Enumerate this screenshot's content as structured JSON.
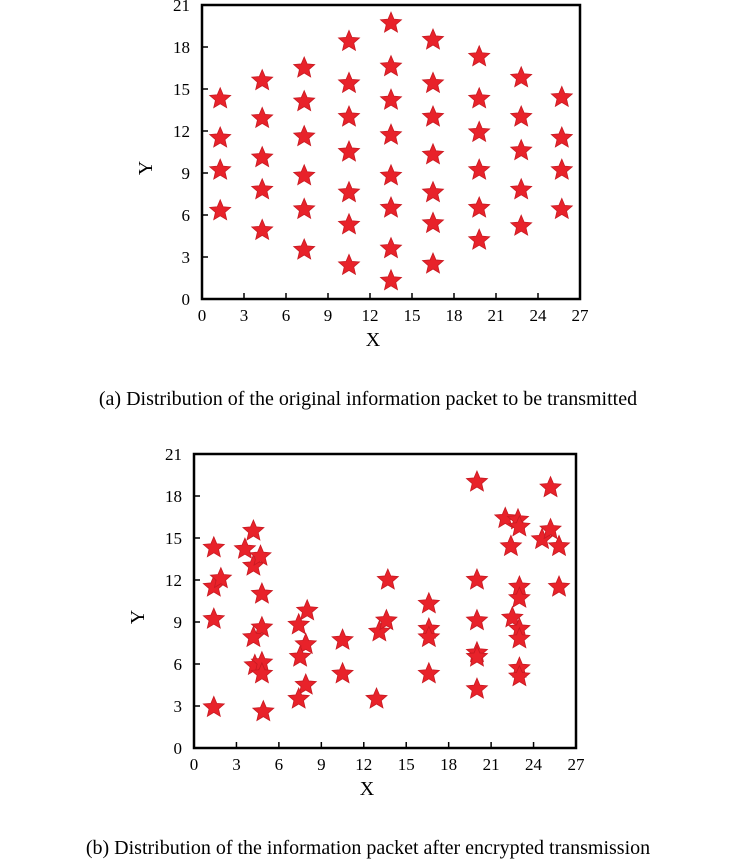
{
  "chart_data": [
    {
      "type": "scatter",
      "xlabel": "X",
      "ylabel": "Y",
      "xlim": [
        0,
        27
      ],
      "ylim": [
        0,
        21
      ],
      "xticks": [
        "0",
        "3",
        "6",
        "9",
        "12",
        "15",
        "18",
        "21",
        "24",
        "27"
      ],
      "yticks": [
        "0",
        "3",
        "6",
        "9",
        "12",
        "15",
        "18",
        "21"
      ],
      "marker": "star",
      "marker_color": "#e8222a",
      "caption": "(a) Distribution of the original information packet to be transmitted",
      "points": [
        [
          1.3,
          14.3
        ],
        [
          1.3,
          11.5
        ],
        [
          1.3,
          9.2
        ],
        [
          1.3,
          6.3
        ],
        [
          4.3,
          15.6
        ],
        [
          4.3,
          12.9
        ],
        [
          4.3,
          10.1
        ],
        [
          4.3,
          7.8
        ],
        [
          4.3,
          4.9
        ],
        [
          7.3,
          16.5
        ],
        [
          7.3,
          14.1
        ],
        [
          7.3,
          11.6
        ],
        [
          7.3,
          8.8
        ],
        [
          7.3,
          6.4
        ],
        [
          7.3,
          3.5
        ],
        [
          10.5,
          18.4
        ],
        [
          10.5,
          15.4
        ],
        [
          10.5,
          13.0
        ],
        [
          10.5,
          10.5
        ],
        [
          10.5,
          7.6
        ],
        [
          10.5,
          5.3
        ],
        [
          10.5,
          2.4
        ],
        [
          13.5,
          19.7
        ],
        [
          13.5,
          16.6
        ],
        [
          13.5,
          14.2
        ],
        [
          13.5,
          11.7
        ],
        [
          13.5,
          8.8
        ],
        [
          13.5,
          6.5
        ],
        [
          13.5,
          3.6
        ],
        [
          13.5,
          1.3
        ],
        [
          16.5,
          18.5
        ],
        [
          16.5,
          15.4
        ],
        [
          16.5,
          13.0
        ],
        [
          16.5,
          10.3
        ],
        [
          16.5,
          7.6
        ],
        [
          16.5,
          5.4
        ],
        [
          16.5,
          2.5
        ],
        [
          19.8,
          17.3
        ],
        [
          19.8,
          14.3
        ],
        [
          19.8,
          11.9
        ],
        [
          19.8,
          9.2
        ],
        [
          19.8,
          6.5
        ],
        [
          19.8,
          4.2
        ],
        [
          22.8,
          15.8
        ],
        [
          22.8,
          13.0
        ],
        [
          22.8,
          10.6
        ],
        [
          22.8,
          7.8
        ],
        [
          22.8,
          5.2
        ],
        [
          25.7,
          14.4
        ],
        [
          25.7,
          11.5
        ],
        [
          25.7,
          9.2
        ],
        [
          25.7,
          6.4
        ]
      ]
    },
    {
      "type": "scatter",
      "xlabel": "X",
      "ylabel": "Y",
      "xlim": [
        0,
        27
      ],
      "ylim": [
        0,
        21
      ],
      "xticks": [
        "0",
        "3",
        "6",
        "9",
        "12",
        "15",
        "18",
        "21",
        "24",
        "27"
      ],
      "yticks": [
        "0",
        "3",
        "6",
        "9",
        "12",
        "15",
        "18",
        "21"
      ],
      "marker": "star",
      "marker_color": "#e8222a",
      "caption": "(b) Distribution of the information packet after encrypted transmission",
      "points": [
        [
          1.4,
          14.3
        ],
        [
          1.4,
          11.5
        ],
        [
          1.9,
          12.1
        ],
        [
          1.4,
          9.2
        ],
        [
          1.4,
          2.9
        ],
        [
          3.6,
          14.2
        ],
        [
          4.2,
          15.5
        ],
        [
          4.2,
          13.0
        ],
        [
          4.7,
          13.7
        ],
        [
          4.8,
          11.0
        ],
        [
          4.8,
          8.6
        ],
        [
          4.2,
          7.9
        ],
        [
          4.3,
          5.9
        ],
        [
          4.8,
          6.1
        ],
        [
          4.8,
          5.3
        ],
        [
          4.9,
          2.6
        ],
        [
          7.4,
          8.8
        ],
        [
          8.0,
          9.8
        ],
        [
          7.9,
          7.4
        ],
        [
          7.5,
          6.5
        ],
        [
          7.9,
          4.5
        ],
        [
          7.4,
          3.5
        ],
        [
          10.5,
          7.7
        ],
        [
          10.5,
          5.3
        ],
        [
          13.1,
          8.3
        ],
        [
          13.6,
          9.1
        ],
        [
          13.7,
          12.0
        ],
        [
          12.9,
          3.5
        ],
        [
          16.6,
          10.3
        ],
        [
          16.6,
          8.5
        ],
        [
          16.6,
          7.9
        ],
        [
          16.6,
          5.3
        ],
        [
          20.0,
          19.0
        ],
        [
          20.0,
          12.0
        ],
        [
          20.0,
          9.1
        ],
        [
          20.0,
          6.8
        ],
        [
          20.0,
          6.5
        ],
        [
          20.0,
          4.2
        ],
        [
          22.0,
          16.4
        ],
        [
          22.4,
          14.4
        ],
        [
          22.9,
          16.3
        ],
        [
          23.0,
          15.8
        ],
        [
          23.0,
          11.5
        ],
        [
          23.0,
          10.7
        ],
        [
          22.5,
          9.3
        ],
        [
          23.0,
          8.5
        ],
        [
          23.0,
          7.8
        ],
        [
          23.0,
          5.7
        ],
        [
          23.0,
          5.1
        ],
        [
          24.6,
          14.9
        ],
        [
          25.2,
          18.6
        ],
        [
          25.2,
          15.6
        ],
        [
          25.8,
          14.4
        ],
        [
          25.8,
          11.5
        ]
      ]
    }
  ]
}
